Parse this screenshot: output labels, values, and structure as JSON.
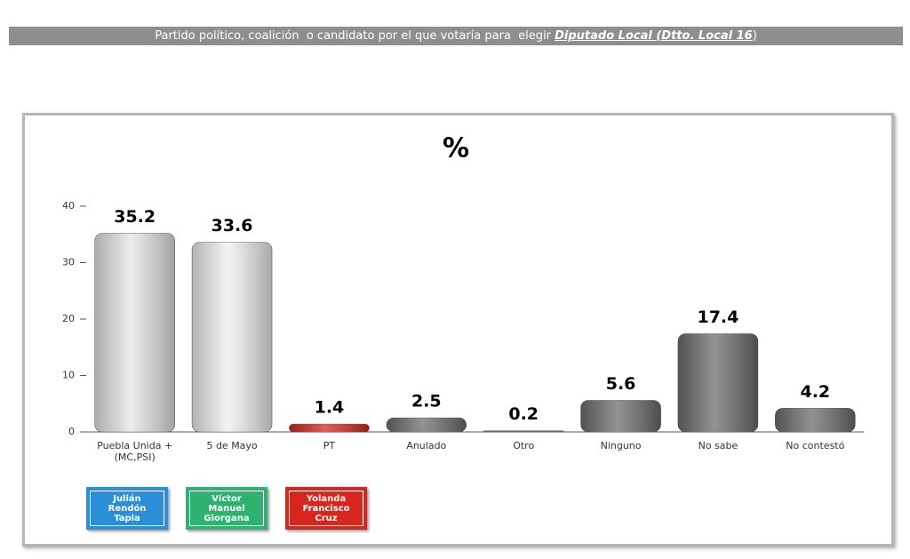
{
  "header": {
    "text": "Partido político, coalición  o candidato por el que votaría para  elegir ",
    "emphasis": "Diputado Local (Dtto. Local 16",
    "closing": ")"
  },
  "chart_data": {
    "type": "bar",
    "title": "%",
    "categories": [
      "Puebla Unida + (MC,PSI)",
      "5 de Mayo",
      "PT",
      "Anulado",
      "Otro",
      "Ninguno",
      "No sabe",
      "No contestó"
    ],
    "values": [
      35.2,
      33.6,
      1.4,
      2.5,
      0.2,
      5.6,
      17.4,
      4.2
    ],
    "colors": [
      "#e6e6e6",
      "#f0f0f0",
      "#d9261c",
      "#6e6e6e",
      "#6e6e6e",
      "#6e6e6e",
      "#6e6e6e",
      "#6e6e6e"
    ],
    "ylim": [
      0,
      40
    ],
    "yticks": [
      0,
      10,
      20,
      30,
      40
    ],
    "candidates": [
      {
        "name": "Julián Rendón Tapia",
        "color": "#2b8fd8"
      },
      {
        "name": "Víctor Manuel Giorgana",
        "color": "#2db36f"
      },
      {
        "name": "Yolanda Francisco Cruz",
        "color": "#d9261c"
      }
    ]
  }
}
